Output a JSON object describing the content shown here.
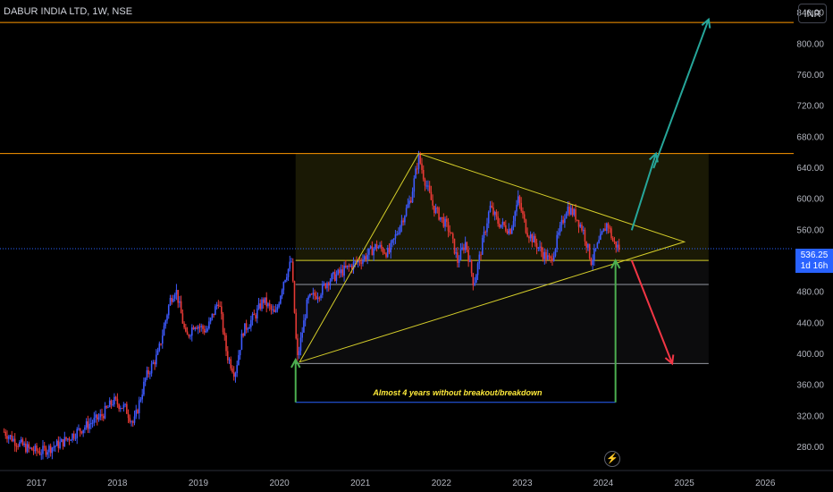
{
  "header": {
    "title": "DABUR INDIA LTD, 1W, NSE",
    "currency": "INR"
  },
  "price_badge": {
    "price": "536.25",
    "countdown": "1d 16h"
  },
  "chart_data": {
    "type": "candlestick",
    "symbol": "DABUR INDIA LTD, 1W, NSE",
    "y_ticks": [
      840,
      800,
      760,
      720,
      680,
      640,
      600,
      560,
      520,
      480,
      440,
      400,
      360,
      320,
      280
    ],
    "y_tick_labels": [
      "840.00",
      "800.00",
      "760.00",
      "720.00",
      "680.00",
      "640.00",
      "600.00",
      "560.00",
      "520.00",
      "480.00",
      "440.00",
      "400.00",
      "360.00",
      "320.00",
      "280.00"
    ],
    "ylim": [
      250,
      857
    ],
    "x_ticks": [
      2017,
      2018,
      2019,
      2020,
      2021,
      2022,
      2023,
      2024,
      2025,
      2026
    ],
    "x_tick_labels": [
      "2017",
      "2018",
      "2019",
      "2020",
      "2021",
      "2022",
      "2023",
      "2024",
      "2025",
      "2026"
    ],
    "xlim": [
      2016.55,
      2026.35
    ],
    "last_price": 536.25,
    "price_series": [
      [
        2016.6,
        300
      ],
      [
        2016.75,
        287
      ],
      [
        2016.9,
        278
      ],
      [
        2017.05,
        274
      ],
      [
        2017.3,
        285
      ],
      [
        2017.5,
        300
      ],
      [
        2017.8,
        320
      ],
      [
        2017.95,
        340
      ],
      [
        2018.1,
        330
      ],
      [
        2018.2,
        310
      ],
      [
        2018.35,
        370
      ],
      [
        2018.5,
        400
      ],
      [
        2018.65,
        470
      ],
      [
        2018.72,
        485
      ],
      [
        2018.85,
        420
      ],
      [
        2018.95,
        440
      ],
      [
        2019.1,
        430
      ],
      [
        2019.25,
        470
      ],
      [
        2019.35,
        400
      ],
      [
        2019.45,
        375
      ],
      [
        2019.55,
        430
      ],
      [
        2019.7,
        450
      ],
      [
        2019.8,
        470
      ],
      [
        2019.95,
        450
      ],
      [
        2020.05,
        495
      ],
      [
        2020.15,
        520
      ],
      [
        2020.22,
        392
      ],
      [
        2020.35,
        470
      ],
      [
        2020.5,
        480
      ],
      [
        2020.6,
        495
      ],
      [
        2020.75,
        505
      ],
      [
        2020.9,
        515
      ],
      [
        2021.05,
        525
      ],
      [
        2021.2,
        540
      ],
      [
        2021.35,
        530
      ],
      [
        2021.5,
        570
      ],
      [
        2021.62,
        600
      ],
      [
        2021.72,
        655
      ],
      [
        2021.78,
        630
      ],
      [
        2021.9,
        590
      ],
      [
        2022.0,
        575
      ],
      [
        2022.1,
        560
      ],
      [
        2022.2,
        520
      ],
      [
        2022.3,
        545
      ],
      [
        2022.4,
        490
      ],
      [
        2022.5,
        540
      ],
      [
        2022.6,
        590
      ],
      [
        2022.7,
        570
      ],
      [
        2022.85,
        560
      ],
      [
        2022.95,
        600
      ],
      [
        2023.05,
        560
      ],
      [
        2023.15,
        545
      ],
      [
        2023.25,
        530
      ],
      [
        2023.35,
        520
      ],
      [
        2023.45,
        555
      ],
      [
        2023.55,
        590
      ],
      [
        2023.65,
        580
      ],
      [
        2023.75,
        560
      ],
      [
        2023.85,
        520
      ],
      [
        2023.95,
        545
      ],
      [
        2024.05,
        570
      ],
      [
        2024.12,
        545
      ],
      [
        2024.2,
        536
      ]
    ],
    "horizontal_levels": [
      {
        "price": 828,
        "color": "#ff9800"
      },
      {
        "price": 659,
        "color": "#ff9800"
      },
      {
        "price": 521,
        "color": "#d6cf2a"
      },
      {
        "price": 490,
        "color": "#9598a1"
      },
      {
        "price": 388,
        "color": "#9598a1"
      }
    ],
    "triangle": {
      "color": "#d6cf2a",
      "points": [
        [
          2020.25,
          390
        ],
        [
          2021.72,
          659
        ],
        [
          2025.0,
          545
        ]
      ]
    },
    "zones": [
      {
        "x_from": 2020.2,
        "x_to": 2025.3,
        "y_from": 521,
        "y_to": 659,
        "color": "#d6cf2a"
      },
      {
        "x_from": 2020.2,
        "x_to": 2025.3,
        "y_from": 388,
        "y_to": 521,
        "color": "#9598a1"
      }
    ],
    "arrows": [
      {
        "from": [
          2024.35,
          560
        ],
        "to": [
          2024.65,
          659
        ],
        "color": "#26a69a"
      },
      {
        "from": [
          2024.62,
          640
        ],
        "to": [
          2025.3,
          832
        ],
        "color": "#26a69a"
      },
      {
        "from": [
          2024.35,
          521
        ],
        "to": [
          2024.85,
          388
        ],
        "color": "#f23645"
      },
      {
        "from": [
          2020.2,
          338
        ],
        "to": [
          2020.2,
          393
        ],
        "color": "#4caf50"
      },
      {
        "from": [
          2024.15,
          338
        ],
        "to": [
          2024.15,
          521
        ],
        "color": "#4caf50"
      }
    ],
    "measure_line": {
      "x_from": 2020.2,
      "x_to": 2024.15,
      "y": 338,
      "color": "#2962ff"
    },
    "annotation": "Almost 4 years without breakout/breakdown",
    "annotation_position": [
      2022.2,
      347
    ]
  }
}
